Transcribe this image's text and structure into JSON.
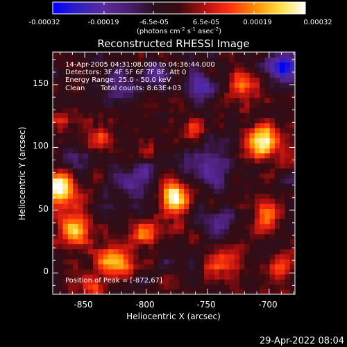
{
  "colors": {
    "background": "#000000",
    "foreground": "#ffffff",
    "colormap": [
      "#0000ff",
      "#3020c0",
      "#5a2aa0",
      "#4a1e70",
      "#2a1020",
      "#3a0a10",
      "#b01010",
      "#ff3010",
      "#ff8c00",
      "#ffe040",
      "#ffffff"
    ]
  },
  "colorbar": {
    "ticks": [
      "-0.00032",
      "-0.00019",
      "-6.5e-05",
      "6.5e-05",
      "0.00019",
      "0.00032"
    ],
    "tick_values": [
      -0.00032,
      -0.00019,
      -6.5e-05,
      6.5e-05,
      0.00019,
      0.00032
    ],
    "range": [
      -0.00032,
      0.00032
    ],
    "unit_main": "(photons cm",
    "unit_sup1": "-2",
    "unit_mid": " s",
    "unit_sup2": "-1",
    "unit_end": " asec",
    "unit_sup3": "-2",
    "unit_close": ")"
  },
  "header": {
    "time_range": "14-Apr-2005 04:31:08.000 to 04:36:44.000",
    "detectors": "Detectors: 3F 4F 5F 6F 7F 8F, Att 0",
    "energy": "Energy Range: 25.0 - 50.0 keV",
    "algorithm": "Clean",
    "counts": "Total counts: 8.63E+03"
  },
  "peak_label": "Position of Peak = [-872,67]",
  "footer_timestamp": "29-Apr-2022 08:04",
  "chart_data": {
    "type": "heatmap",
    "title": "Reconstructed RHESSI Image",
    "xlabel": "Heliocentric X (arcsec)",
    "ylabel": "Heliocentric Y (arcsec)",
    "xlim": [
      -876,
      -679
    ],
    "ylim": [
      -17,
      176
    ],
    "x_ticks": [
      -850,
      -800,
      -750,
      -700
    ],
    "x_tick_labels": [
      "-850",
      "-800",
      "-750",
      "-700"
    ],
    "y_ticks": [
      0,
      50,
      100,
      150
    ],
    "y_tick_labels": [
      "0",
      "50",
      "100",
      "150"
    ],
    "grid": false,
    "peak": [
      -872,
      67
    ],
    "hotspots": [
      {
        "x": -872,
        "y": 67,
        "amp": 1.0,
        "r": 10
      },
      {
        "x": -778,
        "y": 60,
        "amp": 0.95,
        "r": 9
      },
      {
        "x": -705,
        "y": 105,
        "amp": 0.9,
        "r": 10
      },
      {
        "x": -858,
        "y": 35,
        "amp": 0.7,
        "r": 9
      },
      {
        "x": -826,
        "y": 10,
        "amp": 0.7,
        "r": 10
      },
      {
        "x": -800,
        "y": 30,
        "amp": 0.55,
        "r": 7
      },
      {
        "x": -764,
        "y": 115,
        "amp": 0.5,
        "r": 6
      },
      {
        "x": -700,
        "y": 45,
        "amp": 0.55,
        "r": 8
      },
      {
        "x": -720,
        "y": 150,
        "amp": 0.6,
        "r": 7
      },
      {
        "x": -740,
        "y": 10,
        "amp": 0.45,
        "r": 8
      },
      {
        "x": -690,
        "y": 5,
        "amp": 0.5,
        "r": 7
      },
      {
        "x": -836,
        "y": 110,
        "amp": 0.45,
        "r": 6
      },
      {
        "x": -870,
        "y": 120,
        "amp": 0.4,
        "r": 6
      },
      {
        "x": -800,
        "y": 95,
        "amp": 0.35,
        "r": 5
      },
      {
        "x": -845,
        "y": -10,
        "amp": 0.45,
        "r": 6
      }
    ],
    "coldspots": [
      {
        "x": -690,
        "y": 165,
        "amp": -1.0,
        "r": 9
      },
      {
        "x": -805,
        "y": 75,
        "amp": -0.5,
        "r": 12
      },
      {
        "x": -750,
        "y": 85,
        "amp": -0.45,
        "r": 12
      },
      {
        "x": -820,
        "y": 150,
        "amp": -0.45,
        "r": 10
      },
      {
        "x": -755,
        "y": 150,
        "amp": -0.55,
        "r": 8
      },
      {
        "x": -790,
        "y": 160,
        "amp": -0.4,
        "r": 8
      },
      {
        "x": -740,
        "y": 40,
        "amp": -0.4,
        "r": 9
      },
      {
        "x": -855,
        "y": 90,
        "amp": -0.35,
        "r": 8
      }
    ]
  }
}
